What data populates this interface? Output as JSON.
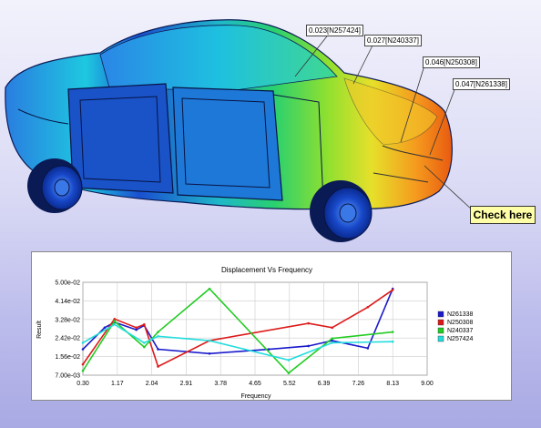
{
  "callouts": {
    "n257424": "0.023[N257424]",
    "n240337": "0.027[N240337]",
    "n250308": "0.046[N250308]",
    "n261338": "0.047[N261338]",
    "check_here": "Check here"
  },
  "chart_data": {
    "type": "line",
    "title": "Displacement Vs Frequency",
    "xlabel": "Frequency",
    "ylabel": "Result",
    "xlim": [
      0.3,
      9.0
    ],
    "ylim": [
      0.007,
      0.05
    ],
    "x_ticks": [
      "0.30",
      "1.17",
      "2.04",
      "2.91",
      "3.78",
      "4.65",
      "5.52",
      "6.39",
      "7.26",
      "8.13",
      "9.00"
    ],
    "y_ticks": [
      "7.00e-03",
      "1.56e-02",
      "2.42e-02",
      "3.28e-02",
      "4.14e-02",
      "5.00e-02"
    ],
    "grid": true,
    "legend": "right",
    "series": [
      {
        "name": "N261338",
        "color": "#1a1acc",
        "x": [
          0.3,
          0.85,
          1.1,
          1.65,
          1.85,
          2.2,
          3.5,
          5.0,
          6.0,
          6.6,
          7.5,
          8.13
        ],
        "y": [
          0.019,
          0.029,
          0.0315,
          0.028,
          0.03,
          0.019,
          0.017,
          0.019,
          0.0205,
          0.023,
          0.0195,
          0.047
        ]
      },
      {
        "name": "N250308",
        "color": "#dd1a1a",
        "x": [
          0.3,
          1.1,
          1.65,
          1.85,
          2.2,
          3.5,
          6.0,
          6.6,
          7.5,
          8.13
        ],
        "y": [
          0.012,
          0.033,
          0.029,
          0.0305,
          0.011,
          0.023,
          0.031,
          0.029,
          0.0385,
          0.0465
        ]
      },
      {
        "name": "N240337",
        "color": "#22cc22",
        "x": [
          0.3,
          1.1,
          1.85,
          2.2,
          3.5,
          5.5,
          6.6,
          8.13
        ],
        "y": [
          0.009,
          0.032,
          0.02,
          0.027,
          0.047,
          0.008,
          0.024,
          0.027
        ]
      },
      {
        "name": "N257424",
        "color": "#22dddd",
        "x": [
          0.3,
          1.1,
          1.85,
          2.2,
          3.5,
          5.5,
          6.6,
          8.13
        ],
        "y": [
          0.022,
          0.0305,
          0.022,
          0.025,
          0.023,
          0.014,
          0.022,
          0.0225
        ]
      }
    ]
  }
}
